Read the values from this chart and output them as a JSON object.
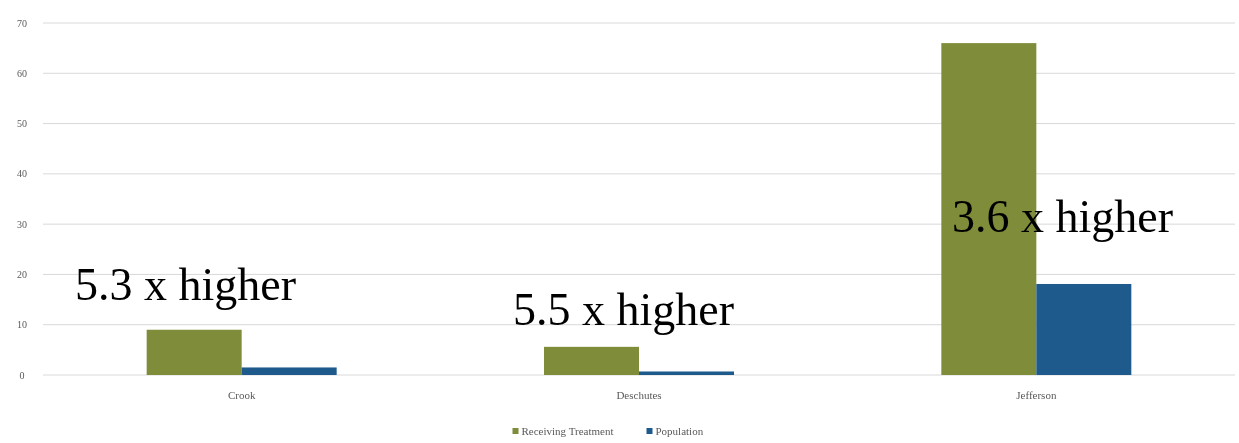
{
  "chart_data": {
    "type": "bar",
    "categories": [
      "Crook",
      "Deschutes",
      "Jefferson"
    ],
    "series": [
      {
        "name": "Receiving Treatment",
        "color": "#7f8c3a",
        "values": [
          9.0,
          5.6,
          66.0
        ]
      },
      {
        "name": "Population",
        "color": "#1f5a8c",
        "values": [
          1.5,
          0.7,
          18.1
        ]
      }
    ],
    "ylim": [
      0,
      70
    ],
    "yticks": [
      0,
      10,
      20,
      30,
      40,
      50,
      60,
      70
    ],
    "grid": "y",
    "legend": "bottom",
    "annotations": [
      "5.3 x higher",
      "5.5 x higher",
      "3.6 x higher"
    ]
  }
}
